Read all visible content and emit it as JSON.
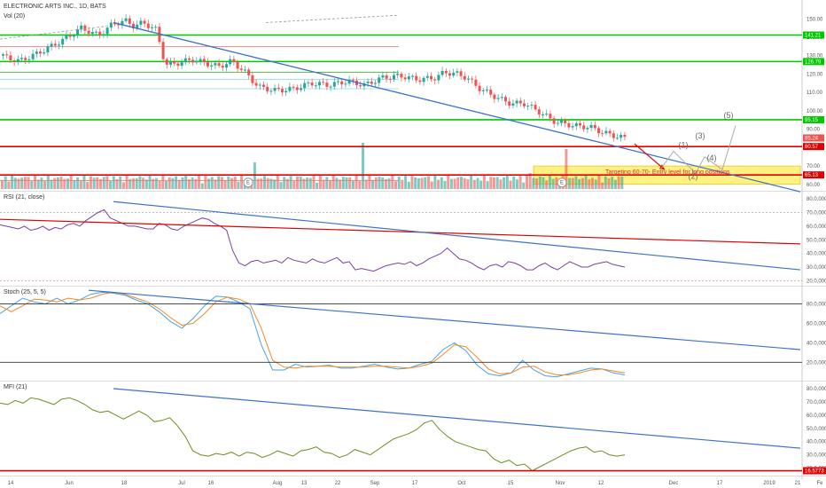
{
  "header": {
    "symbol_line": "ELECTRONIC ARTS INC., 1D, BATS",
    "volume_label": "Vol (20)",
    "rsi_label": "RSI (21, close)",
    "stoch_label": "Stoch (25, 5, 5)",
    "mfi_label": "MFI (21)"
  },
  "colors": {
    "up": "#26a69a",
    "down": "#ef5350",
    "trend": "#3d73c9",
    "green_level": "#00c800",
    "red_level": "#e00000",
    "rsi_line": "#7b3fa3",
    "mfi_line": "#6b8e23",
    "stoch_k": "#4aa3df",
    "stoch_d": "#f08a24",
    "zone": "#ffee58"
  },
  "x_axis_labels": [
    "14",
    "Jun",
    "18",
    "Jul",
    "16",
    "Aug",
    "13",
    "22",
    "Sep",
    "17",
    "Oct",
    "15",
    "Nov",
    "12",
    "Dec",
    "17",
    "2019",
    "21",
    "Fe"
  ],
  "chart_data": [
    {
      "type": "candlestick",
      "title": "ELECTRONIC ARTS INC., 1D, BATS",
      "y_ticks": [
        150,
        140,
        130,
        120,
        110,
        100,
        90,
        80,
        70,
        60
      ],
      "ylim": [
        57,
        154
      ],
      "price_badges": [
        {
          "label": "141.21",
          "color": "#00c800"
        },
        {
          "label": "126.79",
          "color": "#00c800"
        },
        {
          "label": "95.15",
          "color": "#00c800"
        },
        {
          "label": "85.24",
          "color": "#ef5350"
        },
        {
          "label": "80.57",
          "color": "#e00000"
        },
        {
          "label": "65.13",
          "color": "#e00000"
        }
      ],
      "horizontal_levels": [
        {
          "value": 141.21,
          "color": "#00c800"
        },
        {
          "value": 126.79,
          "color": "#00c800"
        },
        {
          "value": 95.15,
          "color": "#00c800"
        },
        {
          "value": 80.57,
          "color": "#e00000"
        },
        {
          "value": 65.13,
          "color": "#e00000"
        }
      ],
      "target_zone": [
        60,
        70
      ],
      "annotation": "Targeting 60-70- Entry level for long positions",
      "wave_labels": [
        "(1)",
        "(2)",
        "(3)",
        "(4)",
        "(5)"
      ]
    },
    {
      "type": "bar",
      "name": "Vol (20)"
    },
    {
      "type": "line",
      "title": "RSI (21, close)",
      "y_ticks": [
        80,
        70,
        60,
        50,
        40,
        30,
        20
      ],
      "ylim": [
        17,
        84
      ],
      "series": [
        {
          "values": [
            61,
            60,
            59,
            58,
            60,
            57,
            58,
            60,
            57,
            59,
            58,
            61,
            62,
            60,
            64,
            67,
            70,
            72,
            66,
            64,
            62,
            60,
            60,
            59,
            58,
            58,
            62,
            61,
            58,
            57,
            60,
            62,
            64,
            66,
            65,
            62,
            60,
            57,
            42,
            33,
            31,
            34,
            35,
            33,
            34,
            35,
            33,
            37,
            35,
            34,
            33,
            36,
            34,
            33,
            35,
            37,
            33,
            34,
            28,
            29,
            28,
            27,
            29,
            31,
            32,
            33,
            32,
            34,
            31,
            33,
            36,
            38,
            40,
            44,
            40,
            36,
            35,
            33,
            30,
            28,
            31,
            32,
            30,
            34,
            33,
            31,
            28,
            28,
            31,
            33,
            30,
            28,
            31,
            34,
            32,
            30,
            30,
            32,
            33,
            34,
            32,
            31,
            30
          ]
        }
      ],
      "levels": [
        70,
        30
      ]
    },
    {
      "type": "line",
      "title": "Stoch (25, 5, 5)",
      "y_ticks": [
        80,
        60,
        40,
        20
      ],
      "ylim": [
        2,
        96
      ],
      "series": [
        {
          "name": "%K",
          "values": [
            70,
            78,
            86,
            82,
            80,
            86,
            80,
            84,
            90,
            92,
            91,
            89,
            84,
            80,
            72,
            62,
            55,
            65,
            78,
            88,
            87,
            82,
            75,
            38,
            12,
            12,
            18,
            15,
            16,
            17,
            14,
            14,
            16,
            18,
            15,
            13,
            14,
            18,
            21,
            33,
            40,
            32,
            17,
            8,
            6,
            9,
            22,
            12,
            6,
            5,
            8,
            11,
            14,
            13,
            9,
            7
          ]
        },
        {
          "name": "%D",
          "values": [
            78,
            72,
            78,
            85,
            84,
            82,
            86,
            84,
            86,
            90,
            92,
            90,
            86,
            82,
            75,
            66,
            58,
            60,
            70,
            82,
            87,
            85,
            80,
            55,
            22,
            15,
            14,
            16,
            16,
            16,
            15,
            15,
            15,
            16,
            16,
            15,
            14,
            16,
            19,
            28,
            38,
            36,
            25,
            13,
            8,
            9,
            15,
            16,
            10,
            7,
            7,
            9,
            12,
            13,
            11,
            9
          ]
        }
      ],
      "levels": [
        80,
        20
      ]
    },
    {
      "type": "line",
      "title": "MFI (21)",
      "y_ticks": [
        80,
        70,
        60,
        50,
        40,
        30,
        20
      ],
      "ylim": [
        15,
        84
      ],
      "series": [
        {
          "values": [
            69,
            68,
            71,
            69,
            73,
            72,
            70,
            68,
            72,
            73,
            71,
            68,
            64,
            62,
            63,
            60,
            57,
            60,
            63,
            60,
            55,
            56,
            58,
            52,
            44,
            33,
            30,
            29,
            31,
            30,
            32,
            29,
            32,
            31,
            28,
            30,
            33,
            31,
            29,
            33,
            34,
            36,
            32,
            31,
            28,
            30,
            34,
            32,
            30,
            34,
            38,
            42,
            44,
            46,
            49,
            54,
            56,
            49,
            44,
            40,
            38,
            36,
            34,
            33,
            27,
            24,
            26,
            22,
            23,
            18,
            21,
            24,
            27,
            30,
            33,
            35,
            36,
            32,
            33,
            30,
            29,
            30
          ]
        }
      ],
      "price_badge": "16.5773"
    }
  ]
}
